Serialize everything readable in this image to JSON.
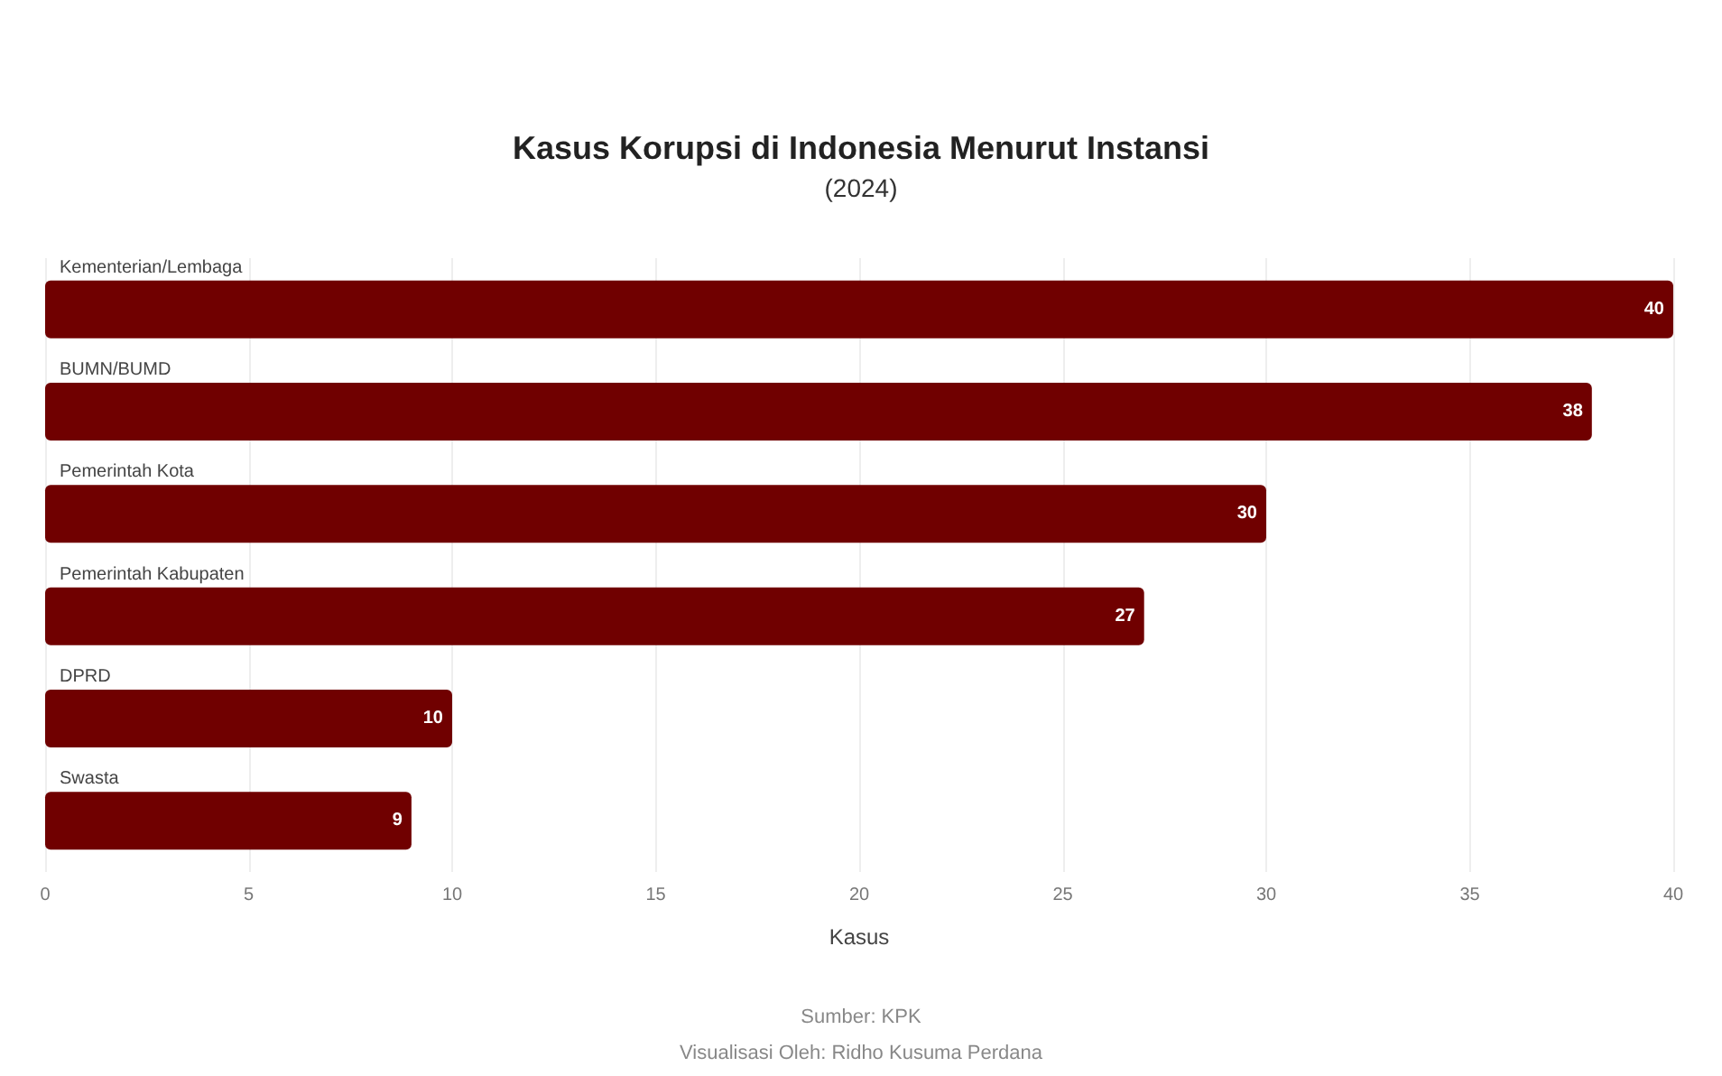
{
  "chart_data": {
    "type": "bar",
    "orientation": "horizontal",
    "title": "Kasus Korupsi di Indonesia Menurut Instansi",
    "subtitle": "(2024)",
    "xlabel": "Kasus",
    "categories": [
      "Kementerian/Lembaga",
      "BUMN/BUMD",
      "Pemerintah Kota",
      "Pemerintah Kabupaten",
      "DPRD",
      "Swasta"
    ],
    "values": [
      40,
      38,
      30,
      27,
      10,
      9
    ],
    "color": "#700000",
    "data_labels": true,
    "xlim": [
      0,
      40
    ],
    "xticks": [
      0,
      5,
      10,
      15,
      20,
      25,
      30,
      35,
      40
    ],
    "grid": "x",
    "annotations": [
      "Sumber: KPK",
      "Visualisasi Oleh: Ridho Kusuma Perdana"
    ]
  }
}
